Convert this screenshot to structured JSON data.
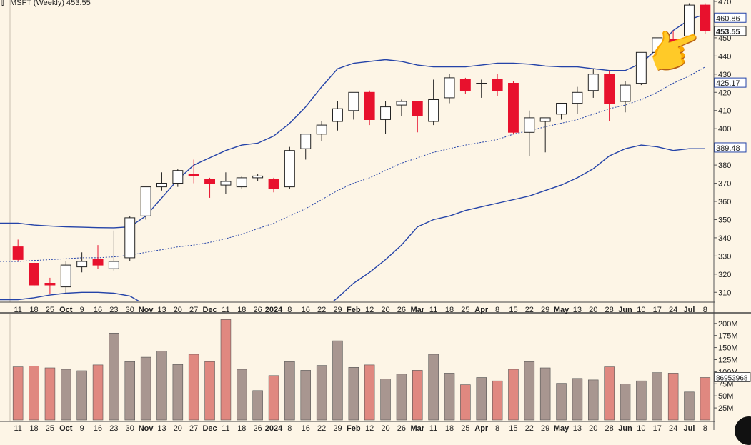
{
  "header": {
    "symbol_icon": "candlestick-icon",
    "title": "MSFT (Weekly) 453.55"
  },
  "colors": {
    "background": "#fdf5e6",
    "up_candle": "#ffffff",
    "down_candle": "#e8112d",
    "band": "#2443a8",
    "vol_up": "#a89690",
    "vol_down": "#e08880",
    "axis_text": "#222222"
  },
  "chart_data": [
    {
      "type": "candlestick",
      "title": "MSFT (Weekly) 453.55",
      "x_ticks": [
        "11",
        "18",
        "25",
        "Oct",
        "9",
        "16",
        "23",
        "30",
        "Nov",
        "13",
        "20",
        "27",
        "Dec",
        "11",
        "18",
        "26",
        "2024",
        "8",
        "16",
        "22",
        "29",
        "Feb",
        "12",
        "20",
        "26",
        "Mar",
        "11",
        "18",
        "25",
        "Apr",
        "8",
        "15",
        "22",
        "29",
        "May",
        "13",
        "20",
        "28",
        "Jun",
        "10",
        "17",
        "24",
        "Jul",
        "8"
      ],
      "bold_ticks": [
        "Oct",
        "Nov",
        "Dec",
        "2024",
        "Feb",
        "Mar",
        "Apr",
        "May",
        "Jun",
        "Jul"
      ],
      "ylim": [
        305,
        470
      ],
      "y_ticks": [
        310,
        320,
        330,
        340,
        350,
        360,
        370,
        380,
        390,
        400,
        410,
        420,
        430,
        440,
        450,
        460,
        470
      ],
      "price_labels": [
        {
          "value": 460.86,
          "text": "460.86"
        },
        {
          "value": 453.55,
          "text": "453.55"
        },
        {
          "value": 425.17,
          "text": "425.17"
        },
        {
          "value": 389.48,
          "text": "389.48"
        }
      ],
      "candles": [
        {
          "o": 335,
          "h": 339,
          "l": 327,
          "c": 328
        },
        {
          "o": 326,
          "h": 328,
          "l": 313,
          "c": 314
        },
        {
          "o": 315,
          "h": 318,
          "l": 309,
          "c": 314
        },
        {
          "o": 313,
          "h": 327,
          "l": 309,
          "c": 325
        },
        {
          "o": 324,
          "h": 332,
          "l": 321,
          "c": 327
        },
        {
          "o": 328,
          "h": 336,
          "l": 323,
          "c": 325
        },
        {
          "o": 323,
          "h": 344,
          "l": 322,
          "c": 327
        },
        {
          "o": 329,
          "h": 352,
          "l": 327,
          "c": 351
        },
        {
          "o": 352,
          "h": 368,
          "l": 350,
          "c": 368
        },
        {
          "o": 368,
          "h": 376,
          "l": 366,
          "c": 370
        },
        {
          "o": 370,
          "h": 378,
          "l": 368,
          "c": 377
        },
        {
          "o": 375,
          "h": 383,
          "l": 370,
          "c": 374
        },
        {
          "o": 372,
          "h": 373,
          "l": 362,
          "c": 370
        },
        {
          "o": 369,
          "h": 376,
          "l": 364,
          "c": 371
        },
        {
          "o": 368,
          "h": 374,
          "l": 367,
          "c": 373
        },
        {
          "o": 373,
          "h": 375,
          "l": 371,
          "c": 374
        },
        {
          "o": 372,
          "h": 373,
          "l": 365,
          "c": 367
        },
        {
          "o": 368,
          "h": 390,
          "l": 367,
          "c": 388
        },
        {
          "o": 389,
          "h": 397,
          "l": 383,
          "c": 397
        },
        {
          "o": 397,
          "h": 404,
          "l": 393,
          "c": 402
        },
        {
          "o": 404,
          "h": 415,
          "l": 399,
          "c": 411
        },
        {
          "o": 410,
          "h": 420,
          "l": 405,
          "c": 420
        },
        {
          "o": 420,
          "h": 421,
          "l": 402,
          "c": 405
        },
        {
          "o": 405,
          "h": 415,
          "l": 397,
          "c": 412
        },
        {
          "o": 413,
          "h": 416,
          "l": 407,
          "c": 415
        },
        {
          "o": 415,
          "h": 415,
          "l": 398,
          "c": 407
        },
        {
          "o": 404,
          "h": 427,
          "l": 402,
          "c": 416
        },
        {
          "o": 417,
          "h": 430,
          "l": 414,
          "c": 428
        },
        {
          "o": 427,
          "h": 428,
          "l": 419,
          "c": 421
        },
        {
          "o": 425,
          "h": 427,
          "l": 417,
          "c": 425
        },
        {
          "o": 427,
          "h": 430,
          "l": 418,
          "c": 421
        },
        {
          "o": 425,
          "h": 426,
          "l": 397,
          "c": 398
        },
        {
          "o": 398,
          "h": 410,
          "l": 385,
          "c": 406
        },
        {
          "o": 404,
          "h": 406,
          "l": 387,
          "c": 406
        },
        {
          "o": 408,
          "h": 414,
          "l": 405,
          "c": 414
        },
        {
          "o": 414,
          "h": 423,
          "l": 408,
          "c": 420
        },
        {
          "o": 421,
          "h": 433,
          "l": 417,
          "c": 430
        },
        {
          "o": 430,
          "h": 432,
          "l": 404,
          "c": 414
        },
        {
          "o": 415,
          "h": 426,
          "l": 409,
          "c": 424
        },
        {
          "o": 425,
          "h": 442,
          "l": 424,
          "c": 442
        },
        {
          "o": 442,
          "h": 450,
          "l": 440,
          "c": 450
        },
        {
          "o": 449,
          "h": 454,
          "l": 446,
          "c": 447
        },
        {
          "o": 451,
          "h": 469,
          "l": 450,
          "c": 468
        },
        {
          "o": 468,
          "h": 469,
          "l": 452,
          "c": 454
        }
      ],
      "upper_band": [
        348,
        347,
        346.5,
        346,
        345.8,
        345.6,
        345.5,
        346,
        352,
        362,
        372,
        380,
        384,
        388,
        391,
        392,
        396,
        403,
        412,
        423,
        433,
        436,
        437,
        438,
        437,
        435,
        434,
        434,
        434,
        435,
        436,
        436,
        435.5,
        434.5,
        434,
        434,
        433,
        432,
        432,
        436,
        444,
        454,
        460,
        463
      ],
      "middle_band": [
        327,
        327.5,
        328,
        328.5,
        329,
        329,
        329.5,
        330.5,
        332,
        333.5,
        335,
        336,
        337.5,
        339.5,
        342,
        345,
        348,
        352,
        356,
        361,
        366,
        370,
        373,
        377,
        381,
        384,
        387,
        389,
        391,
        392.5,
        394,
        397,
        399,
        401,
        403,
        405,
        408,
        411,
        413,
        416,
        420,
        425,
        429,
        434
      ],
      "lower_band": [
        306,
        307,
        308.5,
        309.5,
        310,
        310,
        309.5,
        308,
        303,
        297,
        290,
        286,
        284,
        283,
        282,
        283,
        284,
        286,
        292,
        300,
        307,
        315,
        321,
        328,
        336,
        346,
        350,
        352,
        355,
        357,
        359,
        361,
        363,
        366,
        369,
        373,
        378,
        385,
        389,
        391,
        390,
        388,
        389,
        389
      ],
      "volume": {
        "ylim": [
          0,
          210
        ],
        "y_ticks": [
          25,
          50,
          75,
          100,
          125,
          150,
          175,
          200
        ],
        "y_tick_labels": [
          "25M",
          "50M",
          "75M",
          "100M",
          "125M",
          "150M",
          "175M",
          "200M"
        ],
        "last_label": "86953968",
        "values": [
          110,
          112,
          108,
          105,
          102,
          114,
          180,
          121,
          130,
          143,
          115,
          136,
          121,
          208,
          105,
          61,
          92,
          121,
          103,
          113,
          164,
          109,
          114,
          85,
          95,
          103,
          136,
          97,
          73,
          88,
          81,
          105,
          121,
          108,
          76,
          86,
          83,
          110,
          75,
          81,
          98,
          97,
          58,
          88
        ],
        "direction": [
          "d",
          "d",
          "d",
          "u",
          "u",
          "d",
          "u",
          "u",
          "u",
          "u",
          "u",
          "d",
          "d",
          "d",
          "u",
          "u",
          "d",
          "u",
          "u",
          "u",
          "u",
          "u",
          "d",
          "u",
          "u",
          "d",
          "u",
          "u",
          "d",
          "u",
          "d",
          "d",
          "u",
          "u",
          "u",
          "u",
          "u",
          "d",
          "u",
          "u",
          "u",
          "d",
          "u",
          "d"
        ]
      }
    }
  ]
}
